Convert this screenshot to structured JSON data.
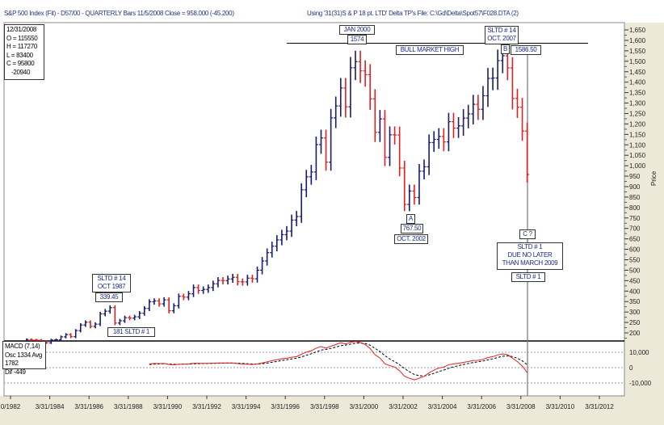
{
  "header": {
    "title": "S&P 500 Index (Fit) - D57/00  - QUARTERLY Bars  11/5/2008 Close = 958.000 (-45.200)",
    "using": "Using '31(31)S & P 18 pt. LTD' Delta TP's   File: C:\\Gd\\Delta\\Spot57\\F028.DTA (2)"
  },
  "info_box": {
    "date": "12/31/2008",
    "open": "O = 115550",
    "high": "H = 117270",
    "low": "L = 83400",
    "close": "C = 95800",
    "change": "-20940"
  },
  "macd_box": {
    "title": "MACD (7,14)",
    "osc": "Osc 1334 Avg 1782",
    "dif": "Dif -449"
  },
  "annotations": {
    "jan2000": "JAN 2000",
    "v1574": "1574",
    "sltd14_2007": "SLTD # 14",
    "oct2007": "OCT. 2007",
    "b": "B",
    "v158650": "1586.50",
    "bull": "BULL MARKET HIGH",
    "a": "A",
    "v76750": "767.50",
    "oct2002": "OCT. 2002",
    "c": "C ?",
    "due1": "SLTD # 1",
    "due2": "DUE NO LATER",
    "due3": "THAN MARCH 2009",
    "sltd1": "SLTD # 1",
    "sltd14_1987": "SLTD # 14",
    "oct1987": "OCT 1987",
    "v33945": "339.45",
    "v181": "181  SLTD # 1"
  },
  "chart_data": {
    "type": "ohlc-bar",
    "title": "S&P 500 Index QUARTERLY Bars",
    "ylabel": "Price",
    "ylim": [
      150,
      1670
    ],
    "yticks": [
      200,
      250,
      300,
      350,
      400,
      450,
      500,
      550,
      600,
      650,
      700,
      750,
      800,
      850,
      900,
      950,
      1000,
      1050,
      1100,
      1150,
      1200,
      1250,
      1300,
      1350,
      1400,
      1450,
      1500,
      1550,
      1600,
      1650
    ],
    "xticks": [
      "0/1982",
      "3/31/1984",
      "3/31/1986",
      "3/31/1988",
      "3/31/1990",
      "3/31/1992",
      "3/31/1994",
      "3/31/1996",
      "3/31/1998",
      "3/31/2000",
      "3/31/2002",
      "3/31/2004",
      "3/31/2006",
      "3/31/2008",
      "3/31/2010",
      "3/31/2012"
    ],
    "start_year": 1983,
    "quarterly_closes": [
      153,
      168,
      166,
      165,
      159,
      153,
      166,
      167,
      181,
      192,
      182,
      211,
      238,
      251,
      231,
      242,
      291,
      304,
      321,
      247,
      258,
      273,
      271,
      277,
      294,
      317,
      349,
      353,
      339,
      358,
      306,
      330,
      375,
      371,
      387,
      417,
      403,
      408,
      417,
      435,
      451,
      450,
      458,
      466,
      445,
      444,
      462,
      459,
      500,
      544,
      584,
      615,
      645,
      670,
      687,
      740,
      757,
      885,
      947,
      970,
      1101,
      1133,
      1017,
      1229,
      1286,
      1372,
      1282,
      1469,
      1498,
      1454,
      1436,
      1320,
      1160,
      1224,
      1040,
      1148,
      1147,
      989,
      815,
      879,
      848,
      974,
      995,
      1111,
      1126,
      1140,
      1114,
      1211,
      1180,
      1191,
      1228,
      1248,
      1294,
      1270,
      1335,
      1418,
      1420,
      1503,
      1526,
      1468,
      1322,
      1280,
      1166,
      958
    ],
    "bull_market_high": 1586.5,
    "macd": {
      "name": "MACD (7,14)",
      "yticks": [
        10000,
        0,
        -10000
      ],
      "ytick_labels": [
        "10,000",
        "0",
        "-10,000"
      ]
    },
    "colors": {
      "up": "#1a1a6e",
      "down": "#e02020",
      "macd": "#e02020",
      "signal": "#000000"
    }
  }
}
